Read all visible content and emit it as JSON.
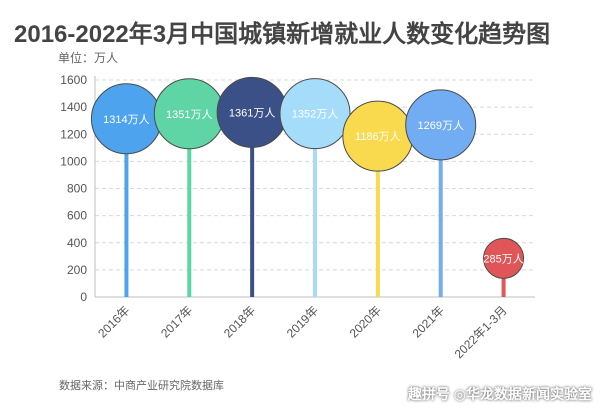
{
  "title": "2016-2022年3月中国城镇新增就业人数变化趋势图",
  "unit_label": "单位：万人",
  "source": "数据来源：中商产业研究院数据库",
  "watermark": "趣拼号 ◎华龙数据新闻实验室",
  "chart_data": {
    "type": "lollipop",
    "categories": [
      "2016年",
      "2017年",
      "2018年",
      "2019年",
      "2020年",
      "2021年",
      "2022年1-3月"
    ],
    "values": [
      1314,
      1351,
      1361,
      1352,
      1186,
      1269,
      285
    ],
    "data_labels": [
      "1314万人",
      "1351万人",
      "1361万人",
      "1352万人",
      "1186万人",
      "1269万人",
      "285万人"
    ],
    "ylim": [
      0,
      1600
    ],
    "yticks": [
      0,
      200,
      400,
      600,
      800,
      1000,
      1200,
      1400,
      1600
    ],
    "grid": true,
    "colors": [
      "#4da3ee",
      "#5fd4a4",
      "#3b5087",
      "#a5dcf9",
      "#f9d94e",
      "#72acf3",
      "#e05557"
    ]
  }
}
